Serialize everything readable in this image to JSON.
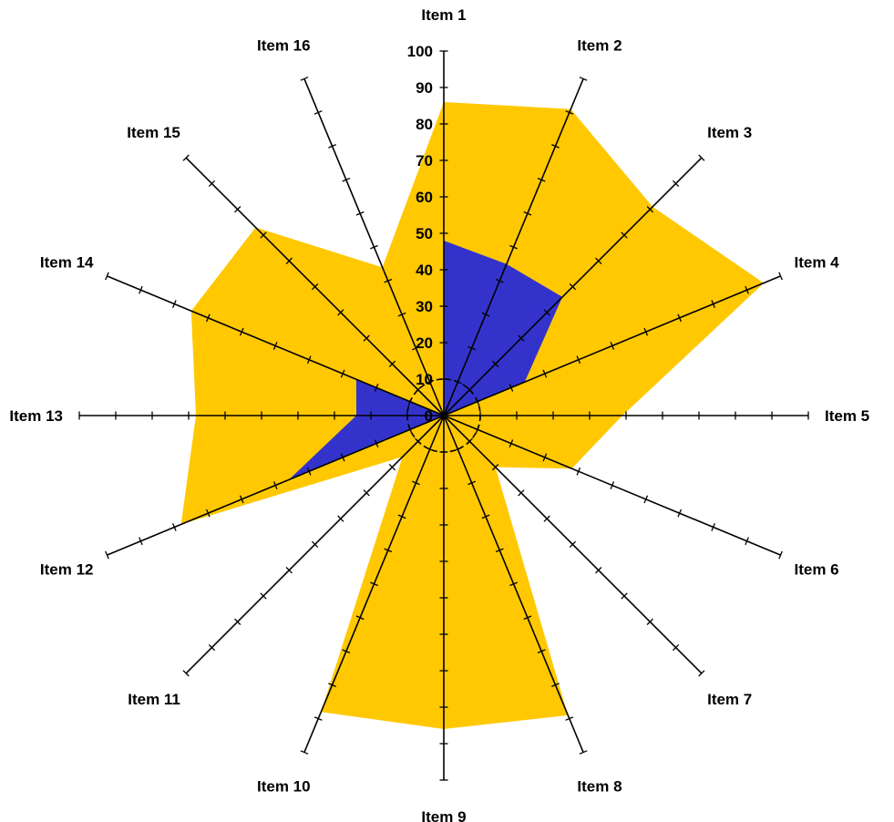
{
  "chart_data": {
    "type": "radar",
    "categories": [
      "Item 1",
      "Item 2",
      "Item 3",
      "Item 4",
      "Item 5",
      "Item 6",
      "Item 7",
      "Item 8",
      "Item 9",
      "Item 10",
      "Item 11",
      "Item 12",
      "Item 13",
      "Item 14",
      "Item 15",
      "Item 16"
    ],
    "series": [
      {
        "color": "#FFC800",
        "values": [
          86,
          91,
          81,
          95,
          49,
          38,
          20,
          89,
          86,
          88,
          16,
          78,
          68,
          75,
          73,
          44
        ]
      },
      {
        "color": "#3333CC",
        "values": [
          48,
          45,
          46,
          24,
          0,
          0,
          0,
          0,
          0,
          0,
          0,
          46,
          24,
          26,
          0,
          0
        ]
      }
    ],
    "radial_axis": {
      "min": 0,
      "max": 100,
      "major_step": 10,
      "tick_labels": [
        "0",
        "10",
        "20",
        "30",
        "40",
        "50",
        "60",
        "70",
        "80",
        "90",
        "100"
      ]
    },
    "inner_circle_dashed": true,
    "grid": false,
    "legend": "none"
  }
}
